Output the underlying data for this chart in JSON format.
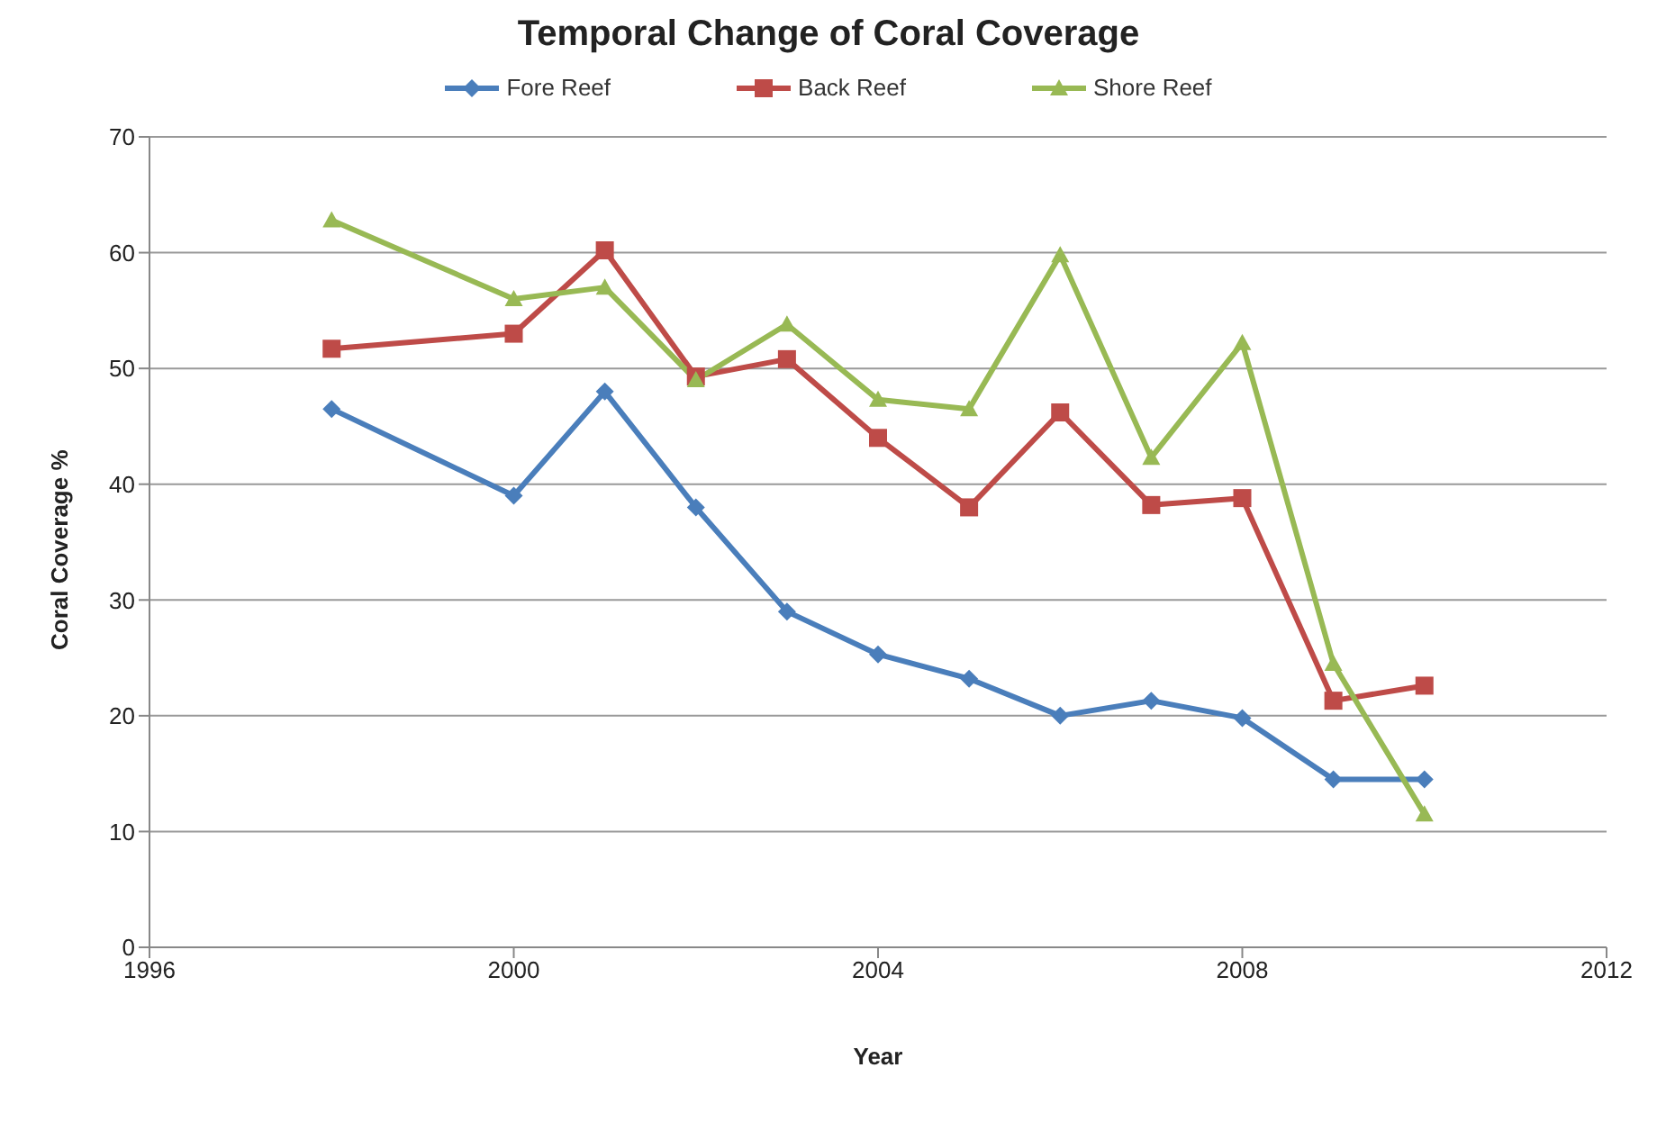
{
  "chart_data": {
    "type": "line",
    "title": "Temporal Change of Coral Coverage",
    "xlabel": "Year",
    "ylabel": "Coral Coverage %",
    "x": [
      1998,
      2000,
      2001,
      2002,
      2003,
      2004,
      2005,
      2006,
      2007,
      2008,
      2009,
      2010
    ],
    "series": [
      {
        "name": "Fore Reef",
        "color": "#4a7ebb",
        "marker": "diamond",
        "values": [
          46.5,
          39,
          48,
          38,
          29,
          25.3,
          23.2,
          20,
          21.3,
          19.8,
          14.5,
          14.5
        ]
      },
      {
        "name": "Back Reef",
        "color": "#be4b48",
        "marker": "square",
        "values": [
          51.7,
          53,
          60.2,
          49.3,
          50.8,
          44,
          38,
          46.2,
          38.2,
          38.8,
          21.3,
          22.6
        ]
      },
      {
        "name": "Shore Reef",
        "color": "#98b954",
        "marker": "triangle",
        "values": [
          62.8,
          56,
          57,
          49,
          53.8,
          47.3,
          46.5,
          59.8,
          42.3,
          52.2,
          24.5,
          11.5
        ]
      }
    ],
    "xlim": [
      1996,
      2012
    ],
    "xticks": [
      1996,
      2000,
      2004,
      2008,
      2012
    ],
    "ylim": [
      0,
      70
    ],
    "yticks": [
      0,
      10,
      20,
      30,
      40,
      50,
      60,
      70
    ],
    "grid": "y",
    "legend": "top",
    "line_style": "solid"
  }
}
